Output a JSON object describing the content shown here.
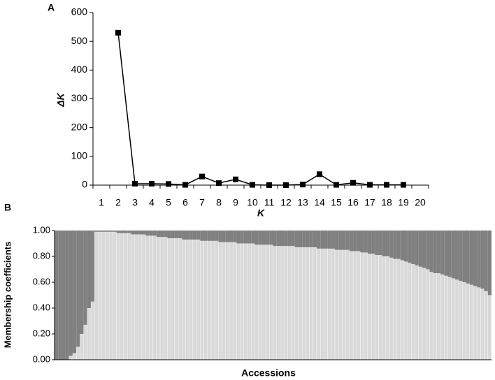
{
  "chart_data": [
    {
      "type": "line",
      "panel_label": "A",
      "x_label": "K",
      "y_label": "ΔK",
      "categories": [
        "1",
        "2",
        "3",
        "4",
        "5",
        "6",
        "7",
        "8",
        "9",
        "10",
        "11",
        "12",
        "13",
        "14",
        "15",
        "16",
        "17",
        "18",
        "19",
        "20"
      ],
      "values": [
        null,
        530,
        5,
        5,
        4,
        1,
        30,
        7,
        20,
        1,
        0,
        0,
        2,
        38,
        1,
        8,
        1,
        1,
        1,
        null
      ],
      "color": "#000000",
      "ylim": [
        0,
        600
      ],
      "yticks": [
        0,
        100,
        200,
        300,
        400,
        500,
        600
      ]
    },
    {
      "type": "bar",
      "stacked": true,
      "panel_label": "B",
      "x_label": "Accessions",
      "y_label": "Membership coefficients",
      "ylim": [
        0,
        1
      ],
      "yticks": [
        {
          "value": 0,
          "label": "0.00"
        },
        {
          "value": 0.2,
          "label": "0.20"
        },
        {
          "value": 0.4,
          "label": "0.40"
        },
        {
          "value": 0.6,
          "label": "0.60"
        },
        {
          "value": 0.8,
          "label": "0.80"
        },
        {
          "value": 1,
          "label": "1.00"
        }
      ],
      "series": [
        {
          "color": "#d9d9d9",
          "values": [
            0,
            0,
            0,
            0,
            0.03,
            0.05,
            0.1,
            0.2,
            0.27,
            0.4,
            0.45,
            0.99,
            0.99,
            0.99,
            0.99,
            0.99,
            0.99,
            0.98,
            0.98,
            0.98,
            0.98,
            0.97,
            0.97,
            0.97,
            0.97,
            0.96,
            0.96,
            0.96,
            0.95,
            0.95,
            0.95,
            0.94,
            0.94,
            0.94,
            0.94,
            0.93,
            0.93,
            0.93,
            0.93,
            0.93,
            0.92,
            0.92,
            0.92,
            0.92,
            0.92,
            0.91,
            0.91,
            0.91,
            0.91,
            0.91,
            0.9,
            0.9,
            0.9,
            0.9,
            0.9,
            0.89,
            0.89,
            0.89,
            0.89,
            0.89,
            0.88,
            0.88,
            0.88,
            0.88,
            0.88,
            0.88,
            0.87,
            0.87,
            0.87,
            0.87,
            0.87,
            0.87,
            0.86,
            0.86,
            0.86,
            0.86,
            0.86,
            0.85,
            0.85,
            0.85,
            0.85,
            0.84,
            0.84,
            0.84,
            0.83,
            0.83,
            0.82,
            0.82,
            0.81,
            0.81,
            0.8,
            0.8,
            0.79,
            0.78,
            0.78,
            0.77,
            0.76,
            0.75,
            0.74,
            0.73,
            0.72,
            0.71,
            0.7,
            0.68,
            0.67,
            0.67,
            0.66,
            0.65,
            0.64,
            0.63,
            0.62,
            0.61,
            0.6,
            0.59,
            0.58,
            0.57,
            0.56,
            0.55,
            0.53,
            0.5
          ]
        },
        {
          "color": "#808080",
          "values": [
            1,
            1,
            1,
            1,
            0.97,
            0.95,
            0.9,
            0.8,
            0.73,
            0.6,
            0.55,
            0.01,
            0.01,
            0.01,
            0.01,
            0.01,
            0.01,
            0.02,
            0.02,
            0.02,
            0.02,
            0.03,
            0.03,
            0.03,
            0.03,
            0.04,
            0.04,
            0.04,
            0.05,
            0.05,
            0.05,
            0.06,
            0.06,
            0.06,
            0.06,
            0.07,
            0.07,
            0.07,
            0.07,
            0.07,
            0.08,
            0.08,
            0.08,
            0.08,
            0.08,
            0.09,
            0.09,
            0.09,
            0.09,
            0.09,
            0.1,
            0.1,
            0.1,
            0.1,
            0.1,
            0.11,
            0.11,
            0.11,
            0.11,
            0.11,
            0.12,
            0.12,
            0.12,
            0.12,
            0.12,
            0.12,
            0.13,
            0.13,
            0.13,
            0.13,
            0.13,
            0.13,
            0.14,
            0.14,
            0.14,
            0.14,
            0.14,
            0.15,
            0.15,
            0.15,
            0.15,
            0.16,
            0.16,
            0.16,
            0.17,
            0.17,
            0.18,
            0.18,
            0.19,
            0.19,
            0.2,
            0.2,
            0.21,
            0.22,
            0.22,
            0.23,
            0.24,
            0.25,
            0.26,
            0.27,
            0.28,
            0.29,
            0.3,
            0.32,
            0.33,
            0.33,
            0.34,
            0.35,
            0.36,
            0.37,
            0.38,
            0.39,
            0.4,
            0.41,
            0.42,
            0.43,
            0.44,
            0.45,
            0.47,
            0.5
          ]
        }
      ]
    }
  ]
}
